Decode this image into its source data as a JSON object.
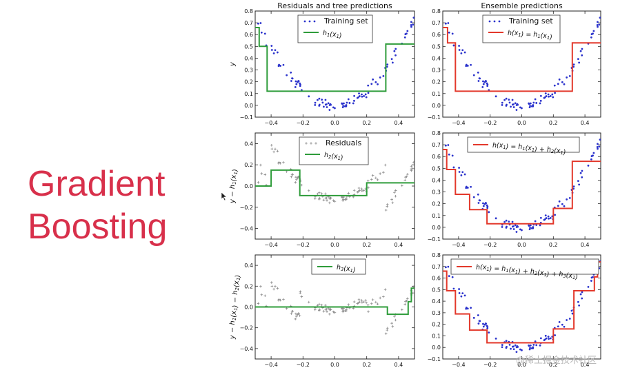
{
  "slide": {
    "title_line1": "Gradient",
    "title_line2": "Boosting",
    "watermark": "@稀土掘金技术社区",
    "colors": {
      "title": "#d8304b",
      "green": "#2e9c3a",
      "red": "#e3382b",
      "blue_points": "#2b33cc",
      "gray_points": "#8a8a8a"
    }
  },
  "chart_data": [
    {
      "type": "scatter",
      "title": "Residuals and tree predictions",
      "xlabel": "",
      "ylabel": "y",
      "xlim": [
        -0.5,
        0.5
      ],
      "ylim": [
        -0.1,
        0.8
      ],
      "xticks": [
        -0.4,
        -0.2,
        0.0,
        0.2,
        0.4
      ],
      "yticks": [
        -0.1,
        0.0,
        0.1,
        0.2,
        0.3,
        0.4,
        0.5,
        0.6,
        0.7,
        0.8
      ],
      "legend_position": "top-center",
      "points_name": "Training set",
      "points_kind": "training",
      "step_name": "h_1(x_1)",
      "step_color": "#2e9c3a",
      "step": [
        [
          -0.5,
          0.66
        ],
        [
          -0.475,
          0.66
        ],
        [
          -0.475,
          0.5
        ],
        [
          -0.425,
          0.5
        ],
        [
          -0.425,
          0.12
        ],
        [
          0.32,
          0.12
        ],
        [
          0.32,
          0.52
        ],
        [
          0.5,
          0.52
        ]
      ]
    },
    {
      "type": "scatter",
      "title": "Ensemble predictions",
      "xlabel": "",
      "ylabel": "",
      "xlim": [
        -0.5,
        0.5
      ],
      "ylim": [
        -0.1,
        0.8
      ],
      "xticks": [
        -0.4,
        -0.2,
        0.0,
        0.2,
        0.4
      ],
      "yticks": [
        -0.1,
        0.0,
        0.1,
        0.2,
        0.3,
        0.4,
        0.5,
        0.6,
        0.7,
        0.8
      ],
      "legend_position": "top-center",
      "points_name": "Training set",
      "points_kind": "training",
      "step_name": "h(x_1) = h_1(x_1)",
      "step_color": "#e3382b",
      "step": [
        [
          -0.5,
          0.66
        ],
        [
          -0.47,
          0.66
        ],
        [
          -0.47,
          0.53
        ],
        [
          -0.42,
          0.53
        ],
        [
          -0.42,
          0.12
        ],
        [
          0.32,
          0.12
        ],
        [
          0.32,
          0.53
        ],
        [
          0.5,
          0.53
        ]
      ]
    },
    {
      "type": "scatter",
      "title": "",
      "xlabel": "",
      "ylabel": "y − h_1(x_1)",
      "xlim": [
        -0.5,
        0.5
      ],
      "ylim": [
        -0.5,
        0.5
      ],
      "xticks": [
        -0.4,
        -0.2,
        0.0,
        0.2,
        0.4
      ],
      "yticks": [
        -0.4,
        -0.2,
        0.0,
        0.2,
        0.4
      ],
      "legend_position": "top-center",
      "points_name": "Residuals",
      "points_kind": "residual1",
      "step_name": "h_2(x_1)",
      "step_color": "#2e9c3a",
      "step": [
        [
          -0.5,
          0.0
        ],
        [
          -0.4,
          0.0
        ],
        [
          -0.4,
          0.15
        ],
        [
          -0.22,
          0.15
        ],
        [
          -0.22,
          -0.09
        ],
        [
          0.2,
          -0.09
        ],
        [
          0.2,
          0.03
        ],
        [
          0.5,
          0.03
        ]
      ]
    },
    {
      "type": "scatter",
      "title": "",
      "xlabel": "",
      "ylabel": "",
      "xlim": [
        -0.5,
        0.5
      ],
      "ylim": [
        -0.1,
        0.8
      ],
      "xticks": [
        -0.4,
        -0.2,
        0.0,
        0.2,
        0.4
      ],
      "yticks": [
        -0.1,
        0.0,
        0.1,
        0.2,
        0.3,
        0.4,
        0.5,
        0.6,
        0.7,
        0.8
      ],
      "legend_position": "top-center",
      "points_name": "",
      "points_kind": "training",
      "step_name": "h(x_1) = h_1(x_1) + h_2(x_1)",
      "step_color": "#e3382b",
      "step": [
        [
          -0.5,
          0.66
        ],
        [
          -0.475,
          0.66
        ],
        [
          -0.475,
          0.49
        ],
        [
          -0.42,
          0.49
        ],
        [
          -0.42,
          0.28
        ],
        [
          -0.33,
          0.28
        ],
        [
          -0.33,
          0.15
        ],
        [
          -0.22,
          0.15
        ],
        [
          -0.22,
          0.03
        ],
        [
          0.2,
          0.03
        ],
        [
          0.2,
          0.16
        ],
        [
          0.32,
          0.16
        ],
        [
          0.32,
          0.56
        ],
        [
          0.5,
          0.56
        ]
      ]
    },
    {
      "type": "scatter",
      "title": "",
      "xlabel": "",
      "ylabel": "y − h_1(x_1) − h_2(x_1)",
      "xlim": [
        -0.5,
        0.5
      ],
      "ylim": [
        -0.5,
        0.5
      ],
      "xticks": [
        -0.4,
        -0.2,
        0.0,
        0.2,
        0.4
      ],
      "yticks": [
        -0.4,
        -0.2,
        0.0,
        0.2,
        0.4
      ],
      "legend_position": "top-center",
      "points_name": "",
      "points_kind": "residual2",
      "step_name": "h_3(x_1)",
      "step_color": "#2e9c3a",
      "step": [
        [
          -0.5,
          0.0
        ],
        [
          0.33,
          0.0
        ],
        [
          0.33,
          -0.07
        ],
        [
          0.46,
          -0.07
        ],
        [
          0.46,
          0.05
        ],
        [
          0.48,
          0.05
        ],
        [
          0.48,
          0.18
        ],
        [
          0.5,
          0.18
        ]
      ]
    },
    {
      "type": "scatter",
      "title": "",
      "xlabel": "",
      "ylabel": "",
      "xlim": [
        -0.5,
        0.5
      ],
      "ylim": [
        -0.1,
        0.8
      ],
      "xticks": [
        -0.4,
        -0.2,
        0.0,
        0.2,
        0.4
      ],
      "yticks": [
        -0.1,
        0.0,
        0.1,
        0.2,
        0.3,
        0.4,
        0.5,
        0.6,
        0.7,
        0.8
      ],
      "legend_position": "top-center",
      "points_name": "",
      "points_kind": "training",
      "step_name": "h(x_1) = h_1(x_1) + h_2(x_1) + h_3(x_1)",
      "step_color": "#e3382b",
      "step": [
        [
          -0.5,
          0.66
        ],
        [
          -0.475,
          0.66
        ],
        [
          -0.475,
          0.49
        ],
        [
          -0.42,
          0.49
        ],
        [
          -0.42,
          0.29
        ],
        [
          -0.33,
          0.29
        ],
        [
          -0.33,
          0.15
        ],
        [
          -0.22,
          0.15
        ],
        [
          -0.22,
          0.04
        ],
        [
          0.2,
          0.04
        ],
        [
          0.2,
          0.16
        ],
        [
          0.33,
          0.16
        ],
        [
          0.33,
          0.49
        ],
        [
          0.46,
          0.49
        ],
        [
          0.46,
          0.61
        ],
        [
          0.48,
          0.61
        ],
        [
          0.48,
          0.74
        ],
        [
          0.5,
          0.74
        ]
      ]
    }
  ]
}
